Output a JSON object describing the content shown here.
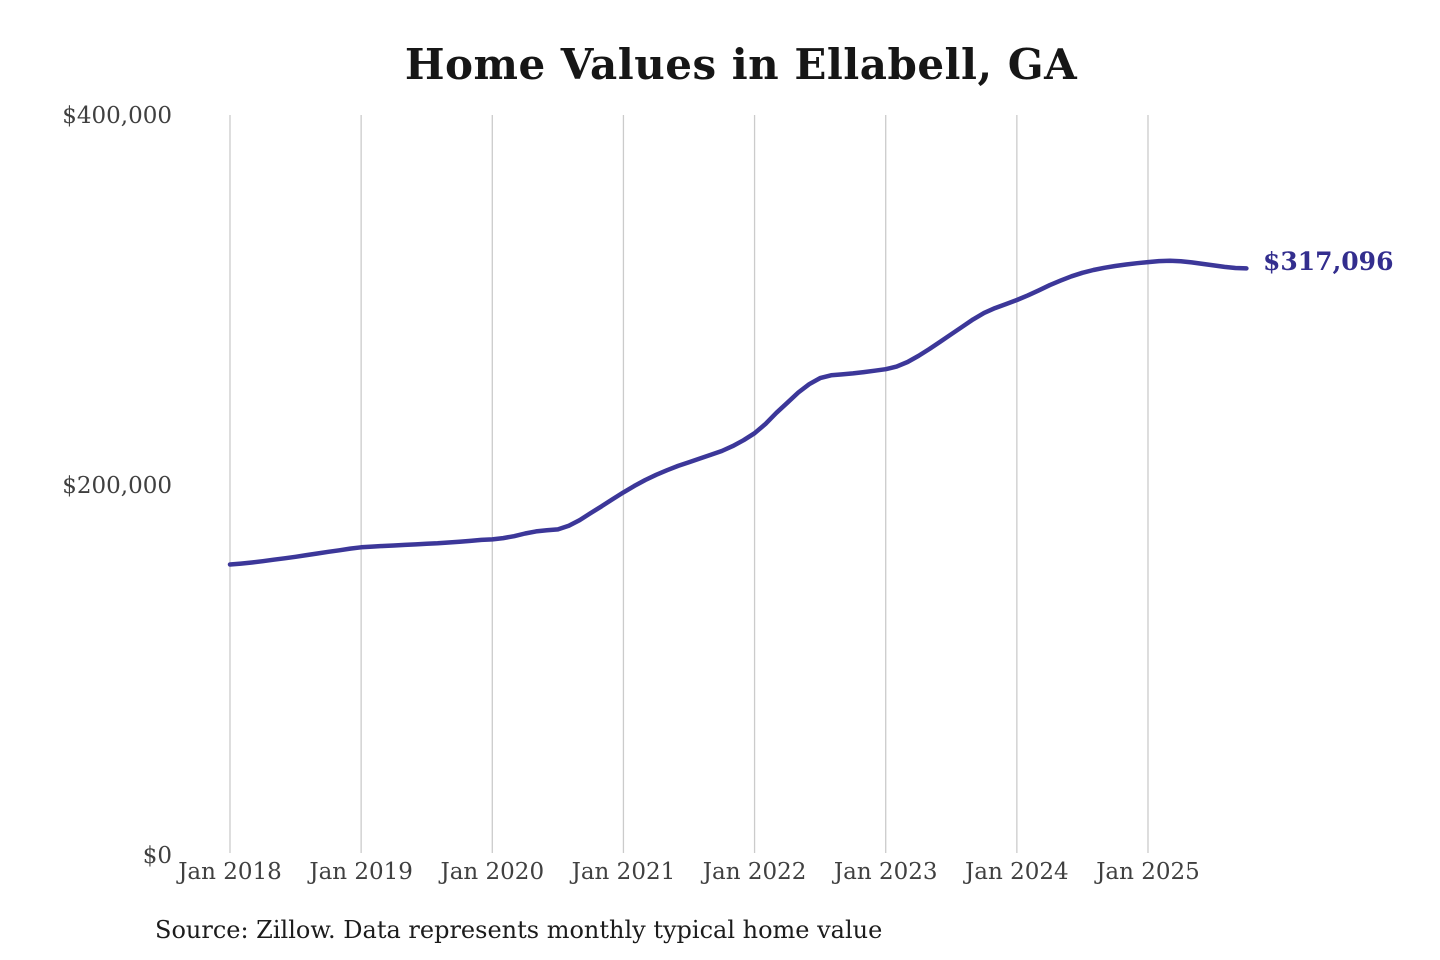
{
  "header": {
    "title": "Home Values in Ellabell, GA"
  },
  "footer": {
    "source_note": "Source: Zillow. Data represents monthly typical home value"
  },
  "annotation": {
    "final_value_label": "$317,096"
  },
  "colors": {
    "background": "#ffffff",
    "line": "#3c3799",
    "annotation_text": "#332e8e",
    "grid": "#cbcbcb",
    "tick_text": "#404040",
    "title_text": "#161616",
    "source_text": "#1c1c1c"
  },
  "chart_data": {
    "type": "line",
    "title": "Home Values in Ellabell, GA",
    "xlabel": "",
    "ylabel": "",
    "ylim": [
      0,
      400000
    ],
    "grid": "vertical-only",
    "legend": "none",
    "y_ticks": [
      {
        "value": 0,
        "label": "$0"
      },
      {
        "value": 200000,
        "label": "$200,000"
      },
      {
        "value": 400000,
        "label": "$400,000"
      }
    ],
    "x_ticks": [
      {
        "month_index": 0,
        "label": "Jan 2018"
      },
      {
        "month_index": 12,
        "label": "Jan 2019"
      },
      {
        "month_index": 24,
        "label": "Jan 2020"
      },
      {
        "month_index": 36,
        "label": "Jan 2021"
      },
      {
        "month_index": 48,
        "label": "Jan 2022"
      },
      {
        "month_index": 60,
        "label": "Jan 2023"
      },
      {
        "month_index": 72,
        "label": "Jan 2024"
      },
      {
        "month_index": 84,
        "label": "Jan 2025"
      }
    ],
    "series": [
      {
        "name": "Monthly typical home value",
        "start_month": "2018-01",
        "end_month": "2025-10",
        "cadence": "monthly",
        "final_value": 317096,
        "values": [
          157000,
          157500,
          158100,
          158800,
          159600,
          160400,
          161200,
          162100,
          163000,
          163900,
          164700,
          165600,
          166300,
          166700,
          167000,
          167300,
          167600,
          167900,
          168200,
          168500,
          168900,
          169300,
          169800,
          170300,
          170600,
          171300,
          172300,
          173800,
          174900,
          175500,
          176000,
          178000,
          181000,
          184800,
          188500,
          192300,
          196000,
          199500,
          202700,
          205500,
          208000,
          210300,
          212300,
          214300,
          216300,
          218400,
          221000,
          224200,
          228000,
          233000,
          239000,
          244500,
          250000,
          254500,
          257800,
          259300,
          259800,
          260300,
          261000,
          261800,
          262600,
          264000,
          266500,
          269800,
          273500,
          277500,
          281500,
          285500,
          289500,
          293000,
          295600,
          297800,
          300000,
          302500,
          305200,
          308000,
          310500,
          312800,
          314700,
          316200,
          317400,
          318400,
          319200,
          319900,
          320500,
          321000,
          321200,
          320900,
          320300,
          319500,
          318700,
          317900,
          317300,
          317096
        ]
      }
    ]
  }
}
